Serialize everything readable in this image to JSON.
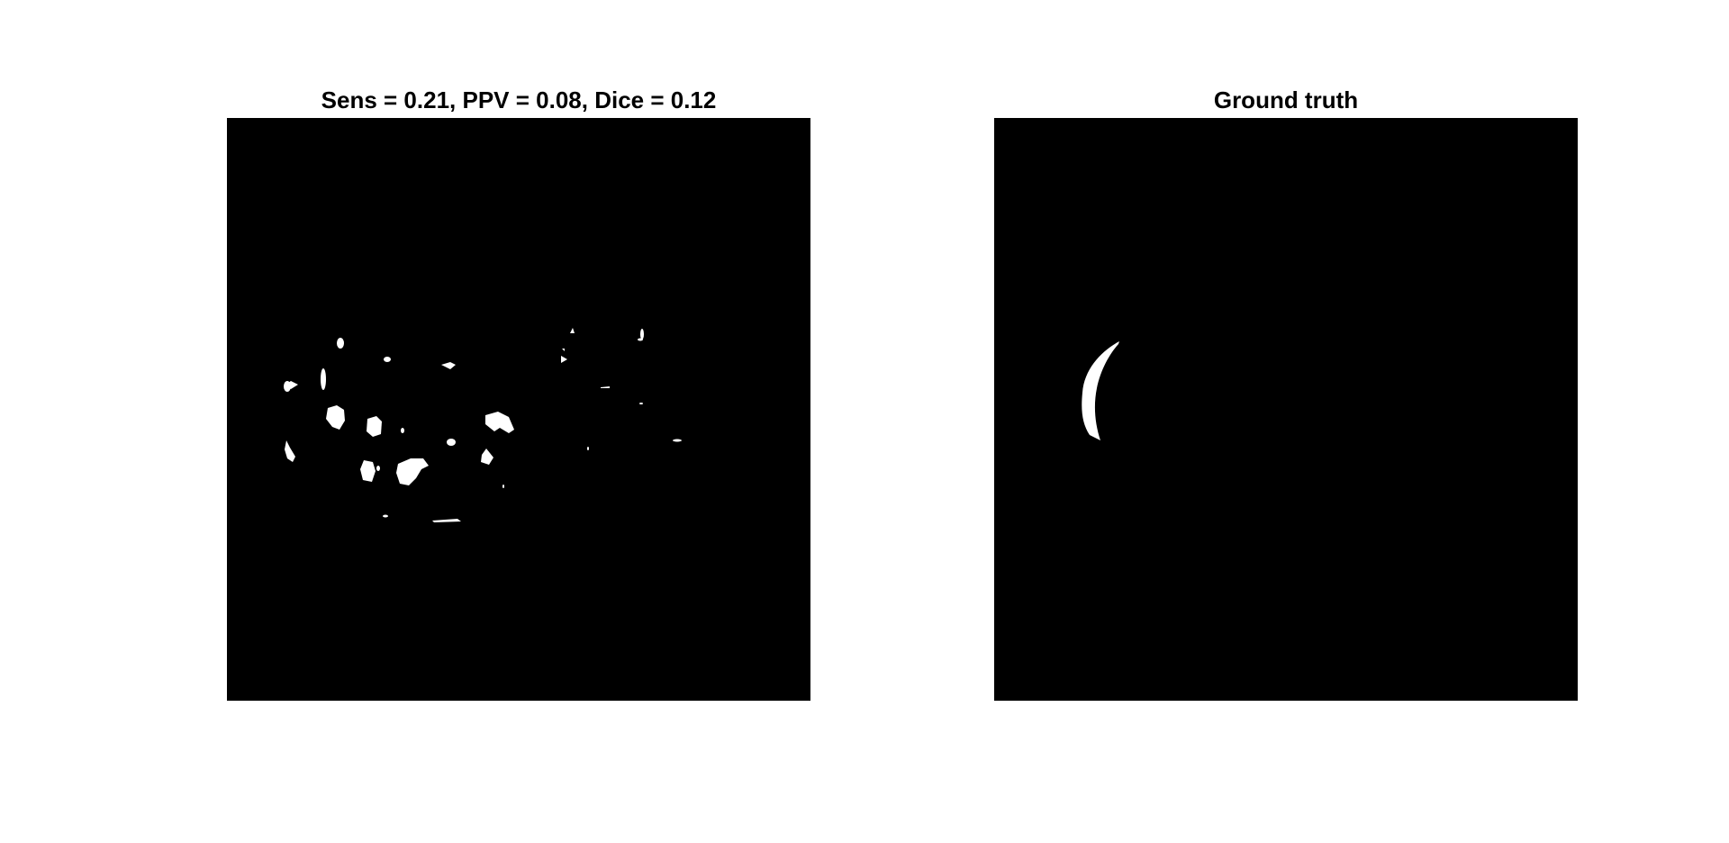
{
  "figure": {
    "left_panel": {
      "title": "Sens = 0.21, PPV = 0.08, Dice = 0.12",
      "image": "binary segmentation mask (prediction)"
    },
    "right_panel": {
      "title": "Ground truth",
      "image": "binary segmentation mask (ground truth)"
    },
    "colors": {
      "background": "#ffffff",
      "mask_bg": "#000000",
      "mask_fg": "#ffffff"
    }
  }
}
